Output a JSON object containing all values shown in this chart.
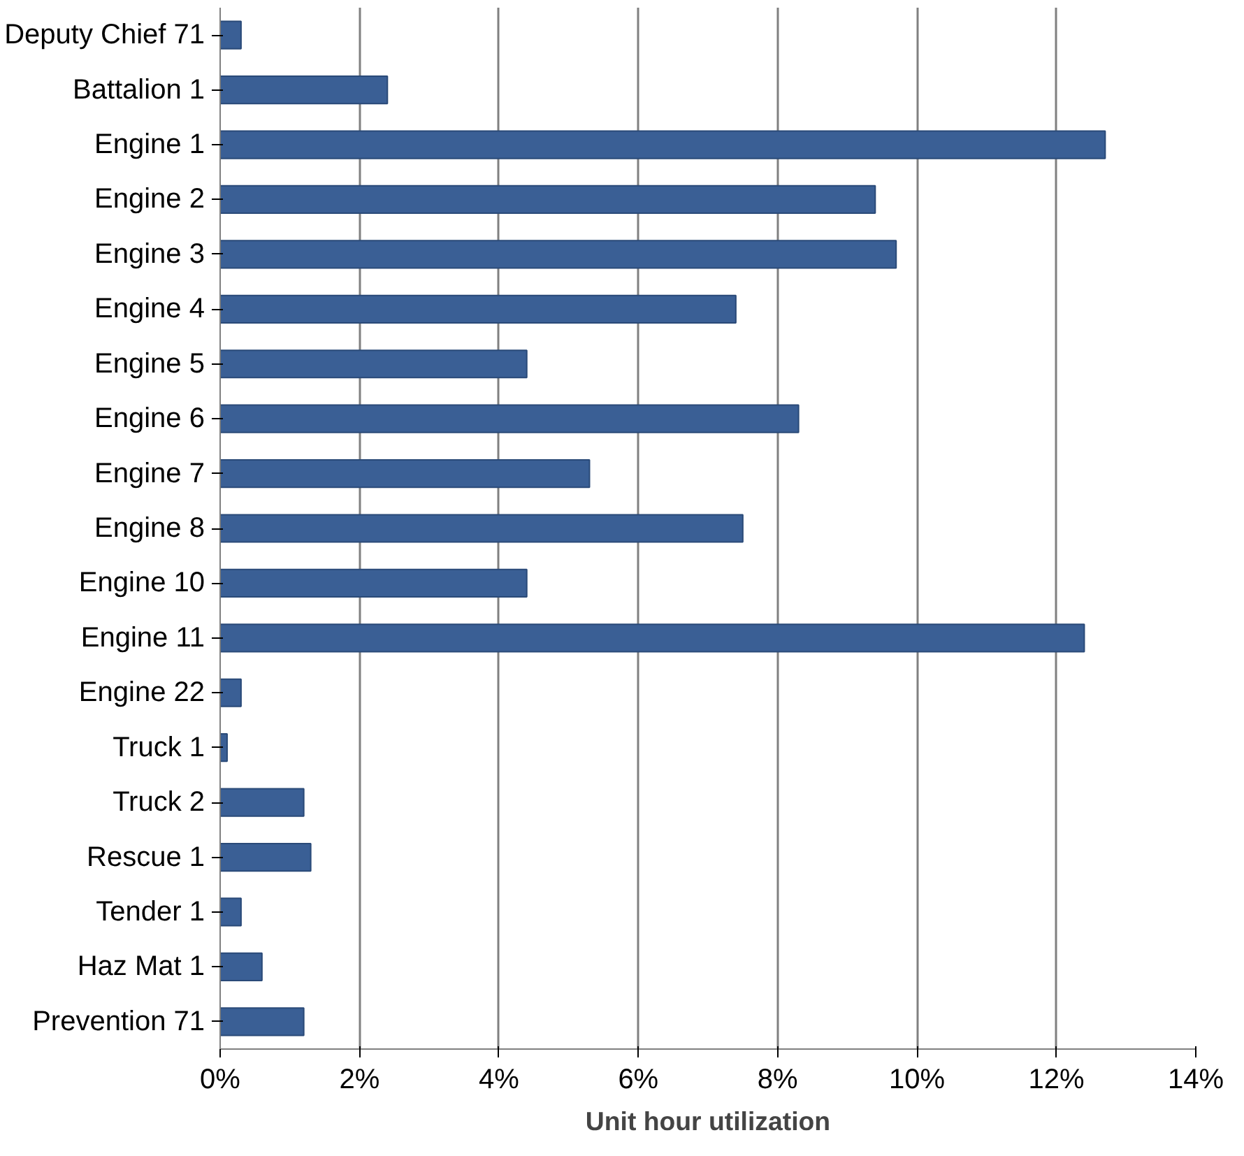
{
  "chart_data": {
    "type": "bar",
    "orientation": "horizontal",
    "xlabel": "Unit hour utilization",
    "categories": [
      "Deputy Chief 71",
      "Battalion 1",
      "Engine 1",
      "Engine 2",
      "Engine 3",
      "Engine 4",
      "Engine 5",
      "Engine 6",
      "Engine 7",
      "Engine 8",
      "Engine 10",
      "Engine 11",
      "Engine 22",
      "Truck 1",
      "Truck 2",
      "Rescue 1",
      "Tender 1",
      "Haz Mat 1",
      "Prevention 71"
    ],
    "values": [
      0.3,
      2.4,
      12.7,
      9.4,
      9.7,
      7.4,
      4.4,
      8.3,
      5.3,
      7.5,
      4.4,
      12.4,
      0.3,
      0.1,
      1.2,
      1.3,
      0.3,
      0.6,
      1.2
    ],
    "color": "#3a5f95",
    "xlim": [
      0,
      14
    ],
    "xticks": [
      {
        "value": 0,
        "label": "0%"
      },
      {
        "value": 2,
        "label": "2%"
      },
      {
        "value": 4,
        "label": "4%"
      },
      {
        "value": 6,
        "label": "6%"
      },
      {
        "value": 8,
        "label": "8%"
      },
      {
        "value": 10,
        "label": "10%"
      },
      {
        "value": 12,
        "label": "12%"
      },
      {
        "value": 14,
        "label": "14%"
      }
    ],
    "grid": "x"
  }
}
